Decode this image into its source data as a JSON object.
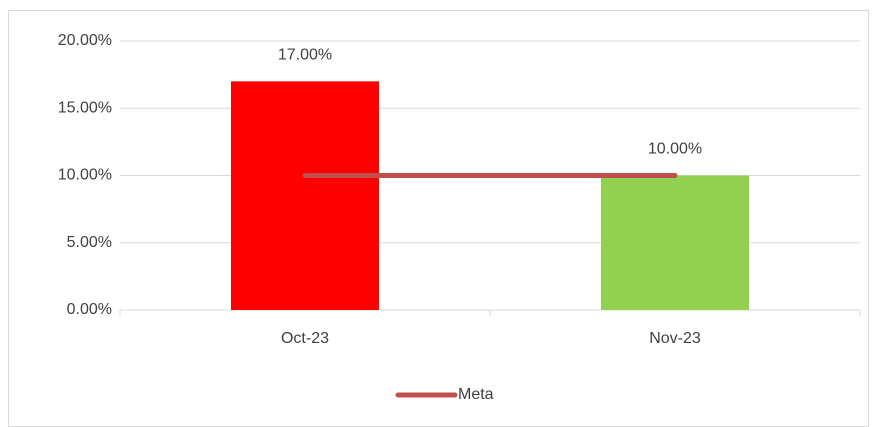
{
  "chart_data": {
    "type": "bar",
    "categories": [
      "Oct-23",
      "Nov-23"
    ],
    "series": [
      {
        "type": "bar",
        "colors": [
          "#ff0000",
          "#92d050"
        ],
        "values": [
          17,
          10
        ],
        "value_labels": [
          "17.00%",
          "10.00%"
        ]
      },
      {
        "type": "line",
        "name": "Meta",
        "color": "#c0504d",
        "values": [
          10,
          10
        ]
      }
    ],
    "ylim": [
      0,
      20
    ],
    "yticks": [
      {
        "value": 0,
        "label": "0.00%"
      },
      {
        "value": 5,
        "label": "5.00%"
      },
      {
        "value": 10,
        "label": "10.00%"
      },
      {
        "value": 15,
        "label": "15.00%"
      },
      {
        "value": 20,
        "label": "20.00%"
      }
    ],
    "grid": true,
    "legend": "bottom"
  }
}
